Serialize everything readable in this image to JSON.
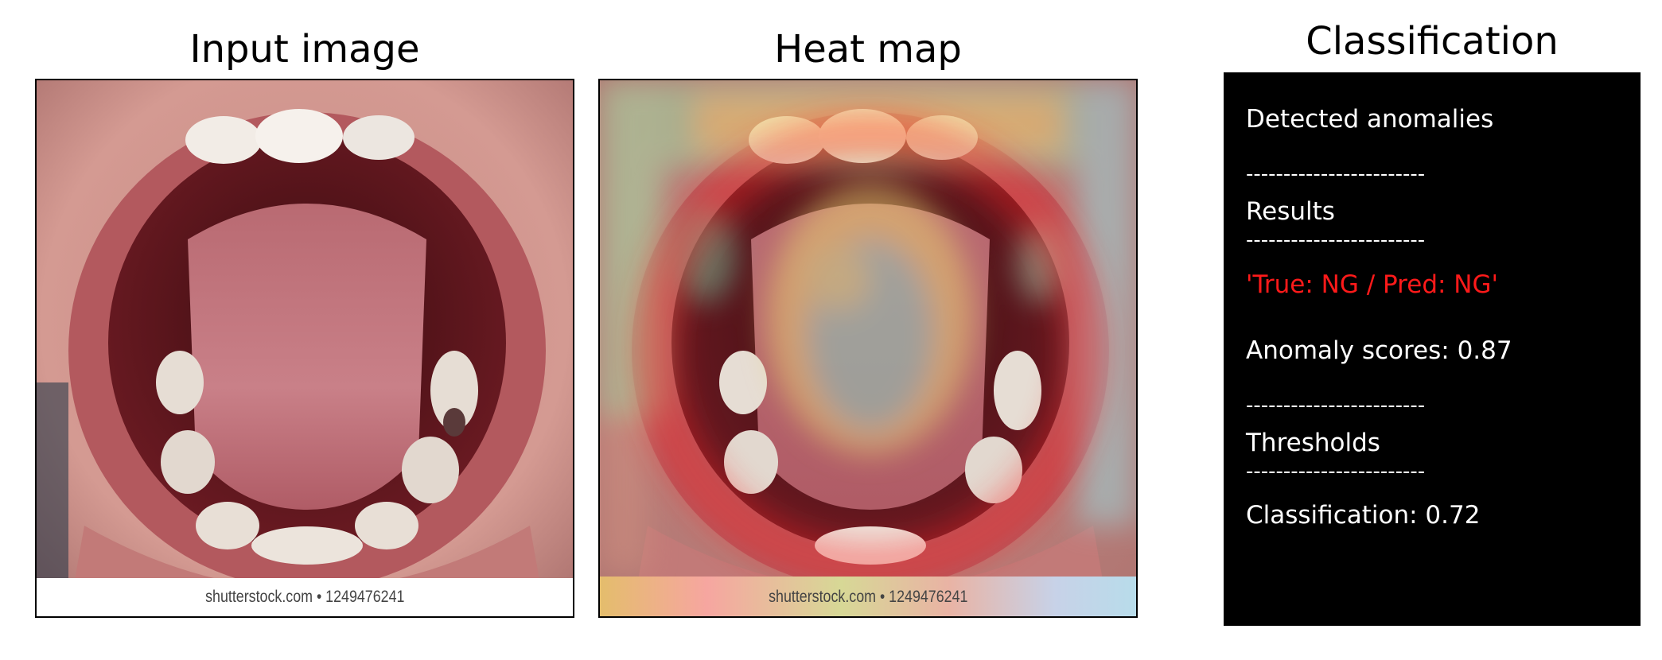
{
  "panels": {
    "input_title": "Input image",
    "heatmap_title": "Heat map",
    "classification_title": "Classification"
  },
  "watermark": "shutterstock.com • 1249476241",
  "classification": {
    "detected_label": "Detected anomalies",
    "separator": "------------------------",
    "results_label": "Results",
    "result_value": "'True: NG / Pred: NG'",
    "anomaly_score": "Anomaly scores: 0.87",
    "thresholds_label": "Thresholds",
    "classification_value": "Classification: 0.72",
    "result_color": "#ff1a1a"
  }
}
